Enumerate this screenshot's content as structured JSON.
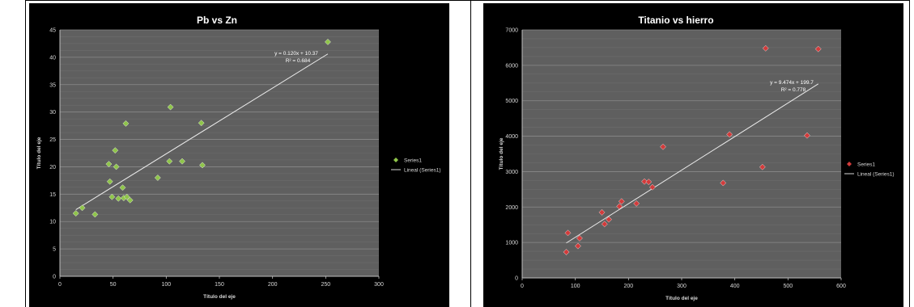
{
  "chart_data": [
    {
      "type": "scatter",
      "title": "Pb vs Zn",
      "xlabel": "Título del eje",
      "ylabel": "Título del eje",
      "xlim": [
        0,
        300
      ],
      "ylim": [
        0,
        45
      ],
      "xticks": [
        "0",
        "50",
        "100",
        "150",
        "200",
        "250",
        "300"
      ],
      "yticks": [
        "0",
        "5",
        "10",
        "15",
        "20",
        "25",
        "30",
        "35",
        "40",
        "45"
      ],
      "grid": true,
      "legend_position": "right",
      "marker_color": "#8fc54a",
      "series": [
        {
          "name": "Series1",
          "x": [
            15,
            21,
            33,
            46,
            47,
            49,
            52,
            53,
            55,
            59,
            60,
            62,
            63,
            66,
            92,
            103,
            104,
            115,
            133,
            134,
            252
          ],
          "y": [
            11.5,
            12.5,
            11.3,
            20.5,
            17.3,
            14.5,
            23,
            20,
            14.2,
            16.2,
            14.3,
            27.9,
            14.5,
            13.9,
            18,
            21,
            30.9,
            21,
            28,
            20.3,
            42.8
          ]
        }
      ],
      "trendline": {
        "name": "Lineal (Series1)",
        "slope": 0.12,
        "intercept": 10.37,
        "x_range": [
          15,
          252
        ],
        "equation": "y = 0.120x + 10.37",
        "r2": "R² = 0.684"
      }
    },
    {
      "type": "scatter",
      "title": "Titanio vs hierro",
      "xlabel": "Título del eje",
      "ylabel": "Título del eje",
      "xlim": [
        0,
        600
      ],
      "ylim": [
        0,
        7000
      ],
      "xticks": [
        "0",
        "100",
        "200",
        "300",
        "400",
        "500",
        "600"
      ],
      "yticks": [
        "0",
        "1000",
        "2000",
        "3000",
        "4000",
        "5000",
        "6000",
        "7000"
      ],
      "grid": true,
      "legend_position": "right",
      "marker_color": "#d23b3b",
      "series": [
        {
          "name": "Series1",
          "x": [
            83,
            86,
            105,
            108,
            150,
            155,
            163,
            183,
            187,
            215,
            230,
            238,
            245,
            265,
            378,
            390,
            452,
            458,
            536,
            557
          ],
          "y": [
            730,
            1270,
            900,
            1120,
            1850,
            1520,
            1650,
            2020,
            2160,
            2100,
            2720,
            2710,
            2560,
            3700,
            2680,
            4050,
            3130,
            6480,
            4020,
            6460
          ]
        }
      ],
      "trendline": {
        "name": "Lineal (Series1)",
        "slope": 9.474,
        "intercept": 199.7,
        "x_range": [
          83,
          557
        ],
        "equation": "y = 9.474x + 199.7",
        "r2": "R² = 0.778"
      }
    }
  ]
}
